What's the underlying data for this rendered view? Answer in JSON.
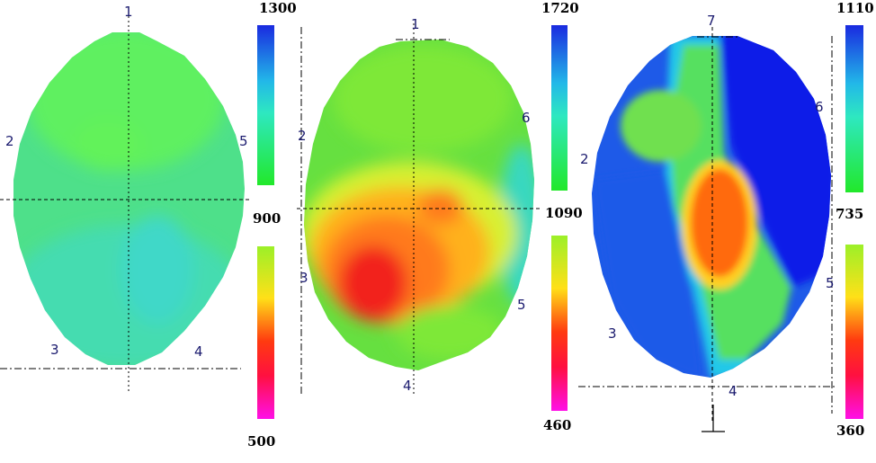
{
  "panels": [
    {
      "id": "left",
      "markers": [
        "1",
        "2",
        "3",
        "4",
        "5"
      ],
      "scale": {
        "max": "1300",
        "mid": "900",
        "min": "500"
      },
      "colors": {
        "base": "#4ee08a",
        "upper": "#5ef060",
        "lower": "#45dcb0",
        "accent": "#62f25a"
      }
    },
    {
      "id": "middle",
      "markers": [
        "1",
        "2",
        "3",
        "4",
        "5",
        "6"
      ],
      "scale": {
        "max": "1720",
        "mid": "1090",
        "min": "460"
      },
      "colors": {
        "base": "#66e040",
        "hot": "#ff7a1a",
        "hotter": "#f2221a",
        "warm": "#ffb11a",
        "yellow": "#d8f030",
        "cool": "#38d8c0"
      }
    },
    {
      "id": "right",
      "markers": [
        "7",
        "2",
        "3",
        "4",
        "5",
        "6"
      ],
      "scale": {
        "max": "1110",
        "mid": "735",
        "min": "360"
      },
      "colors": {
        "blue": "#1e5ae8",
        "deep": "#0b1ee8",
        "cyan": "#22c8e8",
        "green": "#56e060",
        "orange": "#ff6a10",
        "yellow": "#ffd020"
      }
    }
  ]
}
